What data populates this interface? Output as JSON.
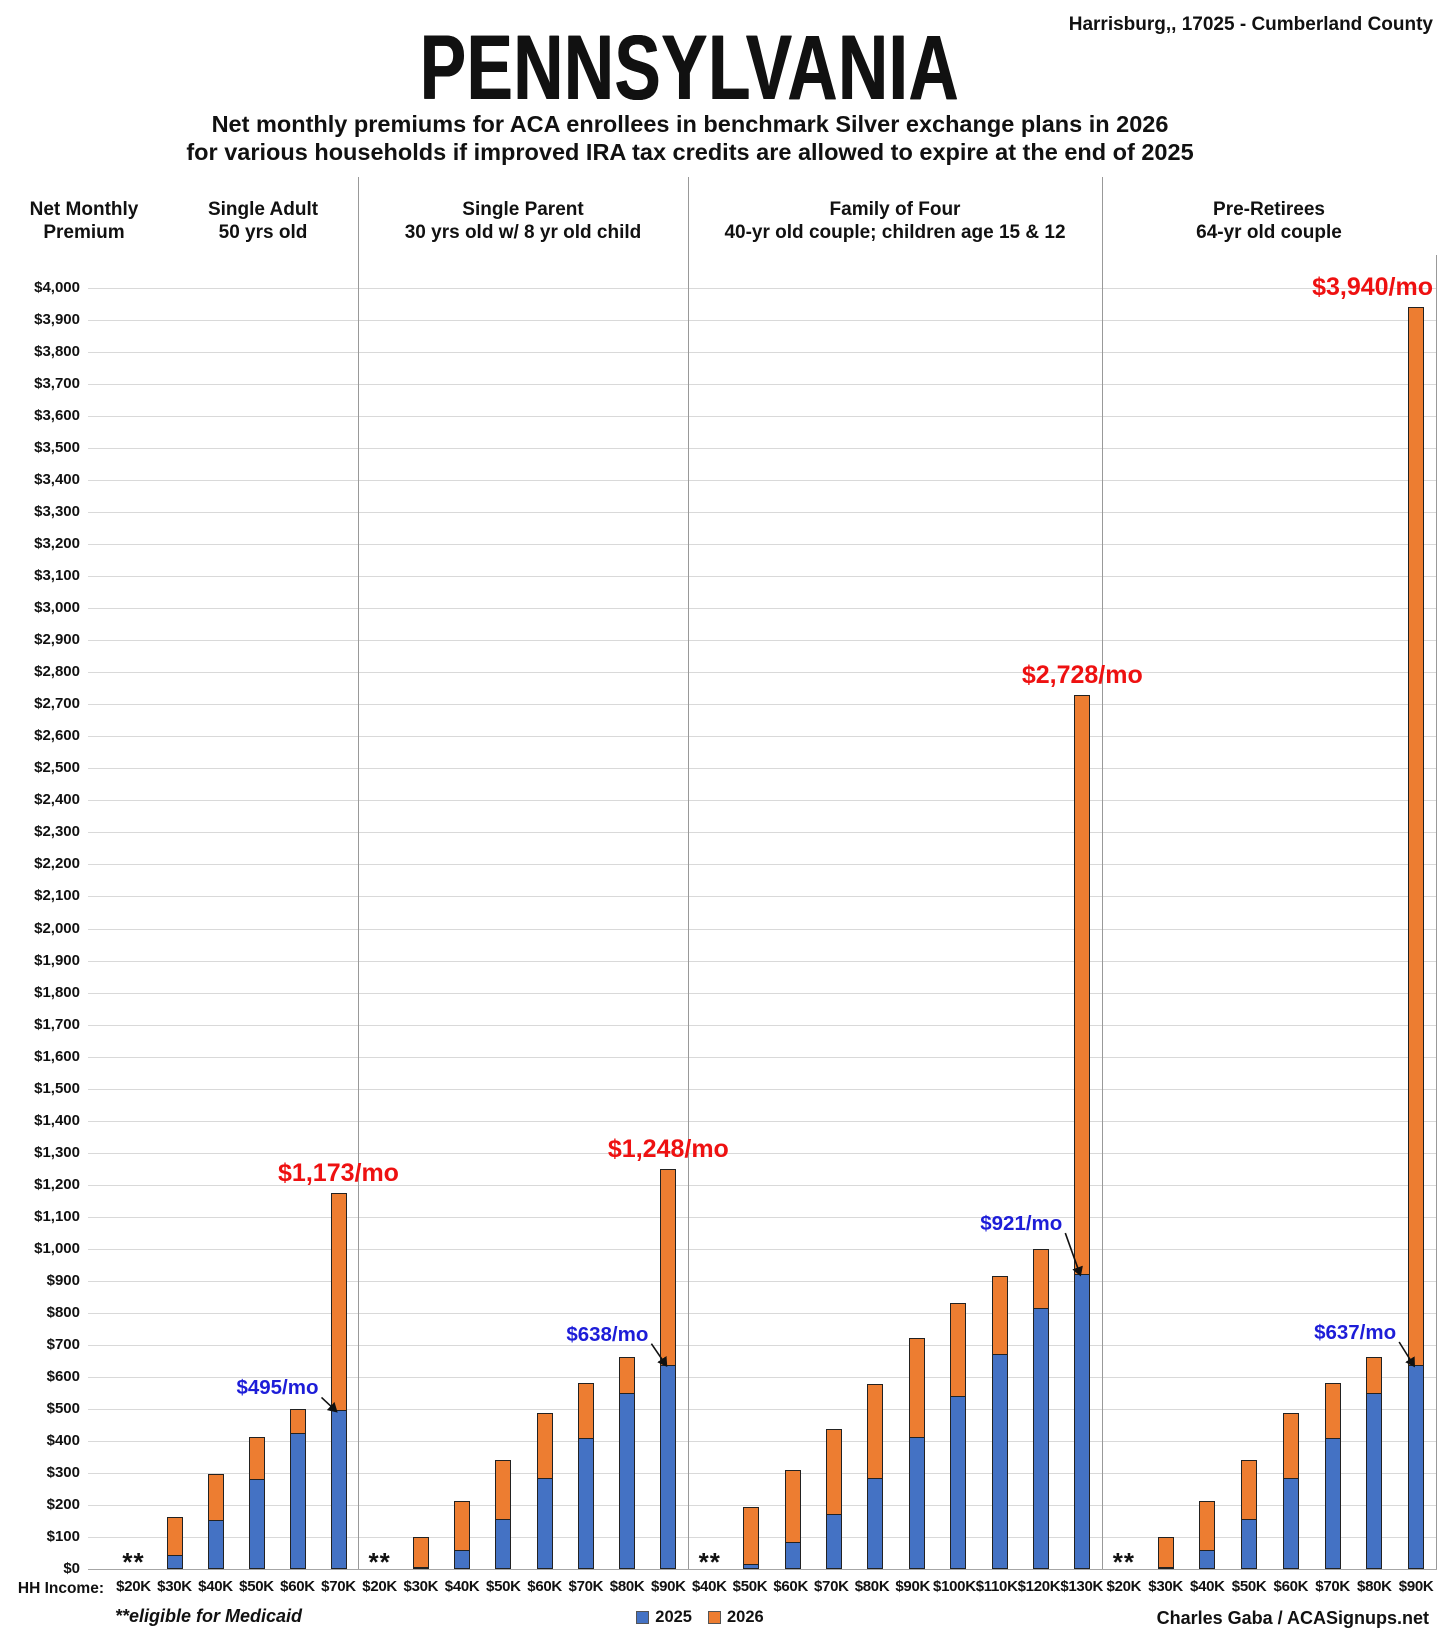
{
  "header": {
    "location": "Harrisburg,, 17025 - Cumberland County",
    "title": "PENNSYLVANIA",
    "subtitle_line1": "Net monthly premiums for ACA enrollees in benchmark Silver exchange plans in 2026",
    "subtitle_line2": "for various households if improved IRA tax credits are allowed to expire at the end of 2025"
  },
  "axis": {
    "title": "Net Monthly Premium",
    "tick_prefix": "$",
    "min": 0,
    "max": 4000,
    "step": 100
  },
  "footer": {
    "hh_income_label": "HH Income:",
    "medicaid_note": "**eligible for Medicaid",
    "credit": "Charles Gaba / ACASignups.net",
    "legend": [
      {
        "label": "2025",
        "color": "#4472C4"
      },
      {
        "label": "2026",
        "color": "#ED7D31"
      }
    ]
  },
  "colors": {
    "bar_2025": "#4472C4",
    "bar_2026": "#ED7D31",
    "bar_border": "#222222",
    "annotation_red": "#EE1111",
    "annotation_blue": "#1D1DD8",
    "gridline": "#D9D9D9",
    "divider": "#999999",
    "axis_line": "#A6A6A6",
    "text": "#111111"
  },
  "chart_data": {
    "type": "bar",
    "stacked": true,
    "title": "Net monthly premiums for ACA enrollees in benchmark Silver exchange plans in 2026 for various households if improved IRA tax credits are allowed to expire at the end of 2025",
    "ylabel": "Net Monthly Premium",
    "xlabel": "HH Income",
    "ylim": [
      0,
      4000
    ],
    "ytick_step": 100,
    "grid": true,
    "legend_position": "bottom-center",
    "series_names": [
      "2025",
      "2026"
    ],
    "groups": [
      {
        "title_line1": "Single Adult",
        "title_line2": "50 yrs old",
        "columns": [
          {
            "income": "$20K",
            "medicaid": true,
            "v2025": null,
            "v2026": null
          },
          {
            "income": "$30K",
            "v2025": 45,
            "v2026": 163
          },
          {
            "income": "$40K",
            "v2025": 152,
            "v2026": 297
          },
          {
            "income": "$50K",
            "v2025": 281,
            "v2026": 412
          },
          {
            "income": "$60K",
            "v2025": 424,
            "v2026": 500
          },
          {
            "income": "$70K",
            "v2025": 495,
            "v2026": 1173
          }
        ]
      },
      {
        "title_line1": "Single Parent",
        "title_line2": "30 yrs old w/ 8 yr old child",
        "columns": [
          {
            "income": "$20K",
            "medicaid": true,
            "v2025": null,
            "v2026": null
          },
          {
            "income": "$30K",
            "v2025": 5,
            "v2026": 98
          },
          {
            "income": "$40K",
            "v2025": 58,
            "v2026": 212
          },
          {
            "income": "$50K",
            "v2025": 157,
            "v2026": 342
          },
          {
            "income": "$60K",
            "v2025": 285,
            "v2026": 487
          },
          {
            "income": "$70K",
            "v2025": 410,
            "v2026": 580
          },
          {
            "income": "$80K",
            "v2025": 549,
            "v2026": 663
          },
          {
            "income": "$90K",
            "v2025": 638,
            "v2026": 1248
          }
        ]
      },
      {
        "title_line1": "Family of Four",
        "title_line2": "40-yr old couple; children age 15 & 12",
        "columns": [
          {
            "income": "$40K",
            "medicaid": true,
            "v2025": null,
            "v2026": null
          },
          {
            "income": "$50K",
            "v2025": 15,
            "v2026": 195
          },
          {
            "income": "$60K",
            "v2025": 85,
            "v2026": 310
          },
          {
            "income": "$70K",
            "v2025": 172,
            "v2026": 437
          },
          {
            "income": "$80K",
            "v2025": 283,
            "v2026": 577
          },
          {
            "income": "$90K",
            "v2025": 412,
            "v2026": 720
          },
          {
            "income": "$100K",
            "v2025": 540,
            "v2026": 830
          },
          {
            "income": "$110K",
            "v2025": 672,
            "v2026": 915
          },
          {
            "income": "$120K",
            "v2025": 815,
            "v2026": 1000
          },
          {
            "income": "$130K",
            "v2025": 921,
            "v2026": 2728
          }
        ]
      },
      {
        "title_line1": "Pre-Retirees",
        "title_line2": "64-yr old couple",
        "columns": [
          {
            "income": "$20K",
            "medicaid": true,
            "v2025": null,
            "v2026": null
          },
          {
            "income": "$30K",
            "v2025": 5,
            "v2026": 98
          },
          {
            "income": "$40K",
            "v2025": 58,
            "v2026": 212
          },
          {
            "income": "$50K",
            "v2025": 157,
            "v2026": 342
          },
          {
            "income": "$60K",
            "v2025": 285,
            "v2026": 487
          },
          {
            "income": "$70K",
            "v2025": 410,
            "v2026": 580
          },
          {
            "income": "$80K",
            "v2025": 549,
            "v2026": 663
          },
          {
            "income": "$90K",
            "v2025": 637,
            "v2026": 3940
          }
        ]
      }
    ],
    "medicaid_marker": "**",
    "annotations": [
      {
        "text": "$495/mo",
        "type": "callout",
        "group": 0,
        "column": 5
      },
      {
        "text": "$1,173/mo",
        "type": "total",
        "group": 0,
        "column": 5
      },
      {
        "text": "$638/mo",
        "type": "callout",
        "group": 1,
        "column": 7
      },
      {
        "text": "$1,248/mo",
        "type": "total",
        "group": 1,
        "column": 7
      },
      {
        "text": "$921/mo",
        "type": "callout",
        "group": 2,
        "column": 9
      },
      {
        "text": "$2,728/mo",
        "type": "total",
        "group": 2,
        "column": 9
      },
      {
        "text": "$637/mo",
        "type": "callout",
        "group": 3,
        "column": 7
      },
      {
        "text": "$3,940/mo",
        "type": "total",
        "group": 3,
        "column": 7
      }
    ]
  }
}
